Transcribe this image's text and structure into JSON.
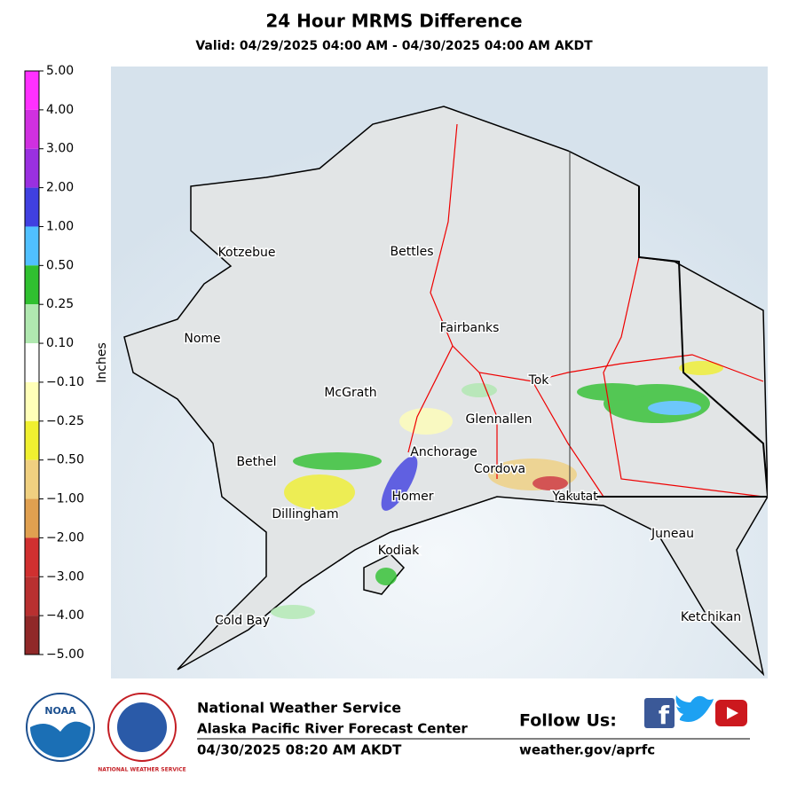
{
  "header": {
    "title": "24 Hour MRMS Difference",
    "subtitle": "Valid: 04/29/2025 04:00 AM - 04/30/2025 04:00 AM AKDT"
  },
  "colorbar": {
    "label": "Inches",
    "ticks": [
      {
        "value": 5,
        "label": "5.00"
      },
      {
        "value": 4,
        "label": "4.00"
      },
      {
        "value": 3,
        "label": "3.00"
      },
      {
        "value": 2,
        "label": "2.00"
      },
      {
        "value": 1,
        "label": "1.00"
      },
      {
        "value": 0.5,
        "label": "0.50"
      },
      {
        "value": 0.25,
        "label": "0.25"
      },
      {
        "value": 0.1,
        "label": "0.10"
      },
      {
        "value": -0.1,
        "label": "−0.10"
      },
      {
        "value": -0.25,
        "label": "−0.25"
      },
      {
        "value": -0.5,
        "label": "−0.50"
      },
      {
        "value": -1,
        "label": "−1.00"
      },
      {
        "value": -2,
        "label": "−2.00"
      },
      {
        "value": -3,
        "label": "−3.00"
      },
      {
        "value": -4,
        "label": "−4.00"
      },
      {
        "value": -5,
        "label": "−5.00"
      }
    ],
    "colors": [
      "#ff30ff",
      "#d030e0",
      "#9a30e0",
      "#4040e0",
      "#50c0ff",
      "#30c030",
      "#b0e8b0",
      "#ffffff",
      "#ffffb8",
      "#f0f030",
      "#f0d080",
      "#e0a050",
      "#d03030",
      "#b83030",
      "#902828"
    ]
  },
  "map": {
    "places": [
      "Kotzebue",
      "Bettles",
      "Nome",
      "Fairbanks",
      "McGrath",
      "Tok",
      "Glennallen",
      "Bethel",
      "Anchorage",
      "Cordova",
      "Dillingham",
      "Homer",
      "Yakutat",
      "Juneau",
      "Kodiak",
      "Cold Bay",
      "Ketchikan"
    ]
  },
  "footer": {
    "logo_noaa": "NOAA",
    "logo_nws": "NATIONAL WEATHER SERVICE",
    "org": "National Weather Service",
    "office": "Alaska Pacific River Forecast Center",
    "issued": "04/30/2025 08:20 AM AKDT",
    "follow": "Follow Us:",
    "url": "weather.gov/aprfc"
  }
}
